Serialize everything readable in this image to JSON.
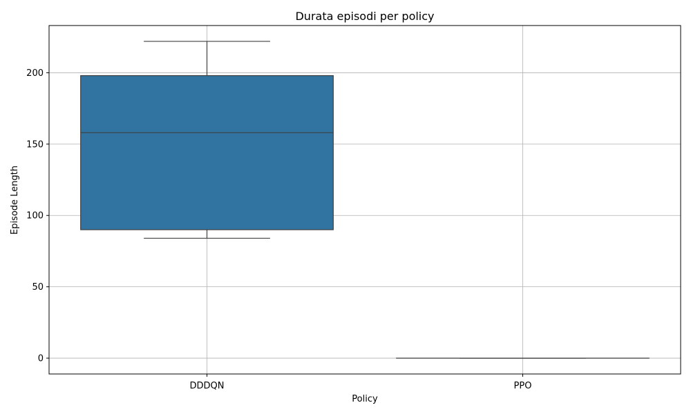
{
  "chart_data": {
    "type": "box",
    "title": "Durata episodi per policy",
    "xlabel": "Policy",
    "ylabel": "Episode Length",
    "categories": [
      "DDDQN",
      "PPO"
    ],
    "boxes": [
      {
        "category": "DDDQN",
        "whisker_low": 84,
        "q1": 90,
        "median": 158,
        "q3": 198,
        "whisker_high": 222
      },
      {
        "category": "PPO",
        "whisker_low": 0,
        "q1": 0,
        "median": 0,
        "q3": 0,
        "whisker_high": 0
      }
    ],
    "ylim": [
      -11.1,
      233.1
    ],
    "yticks": [
      0,
      50,
      100,
      150,
      200
    ],
    "grid": true,
    "colors": {
      "box_fill": "#3274a1",
      "edge": "#3f3f3f",
      "grid": "#b0b0b0"
    }
  }
}
